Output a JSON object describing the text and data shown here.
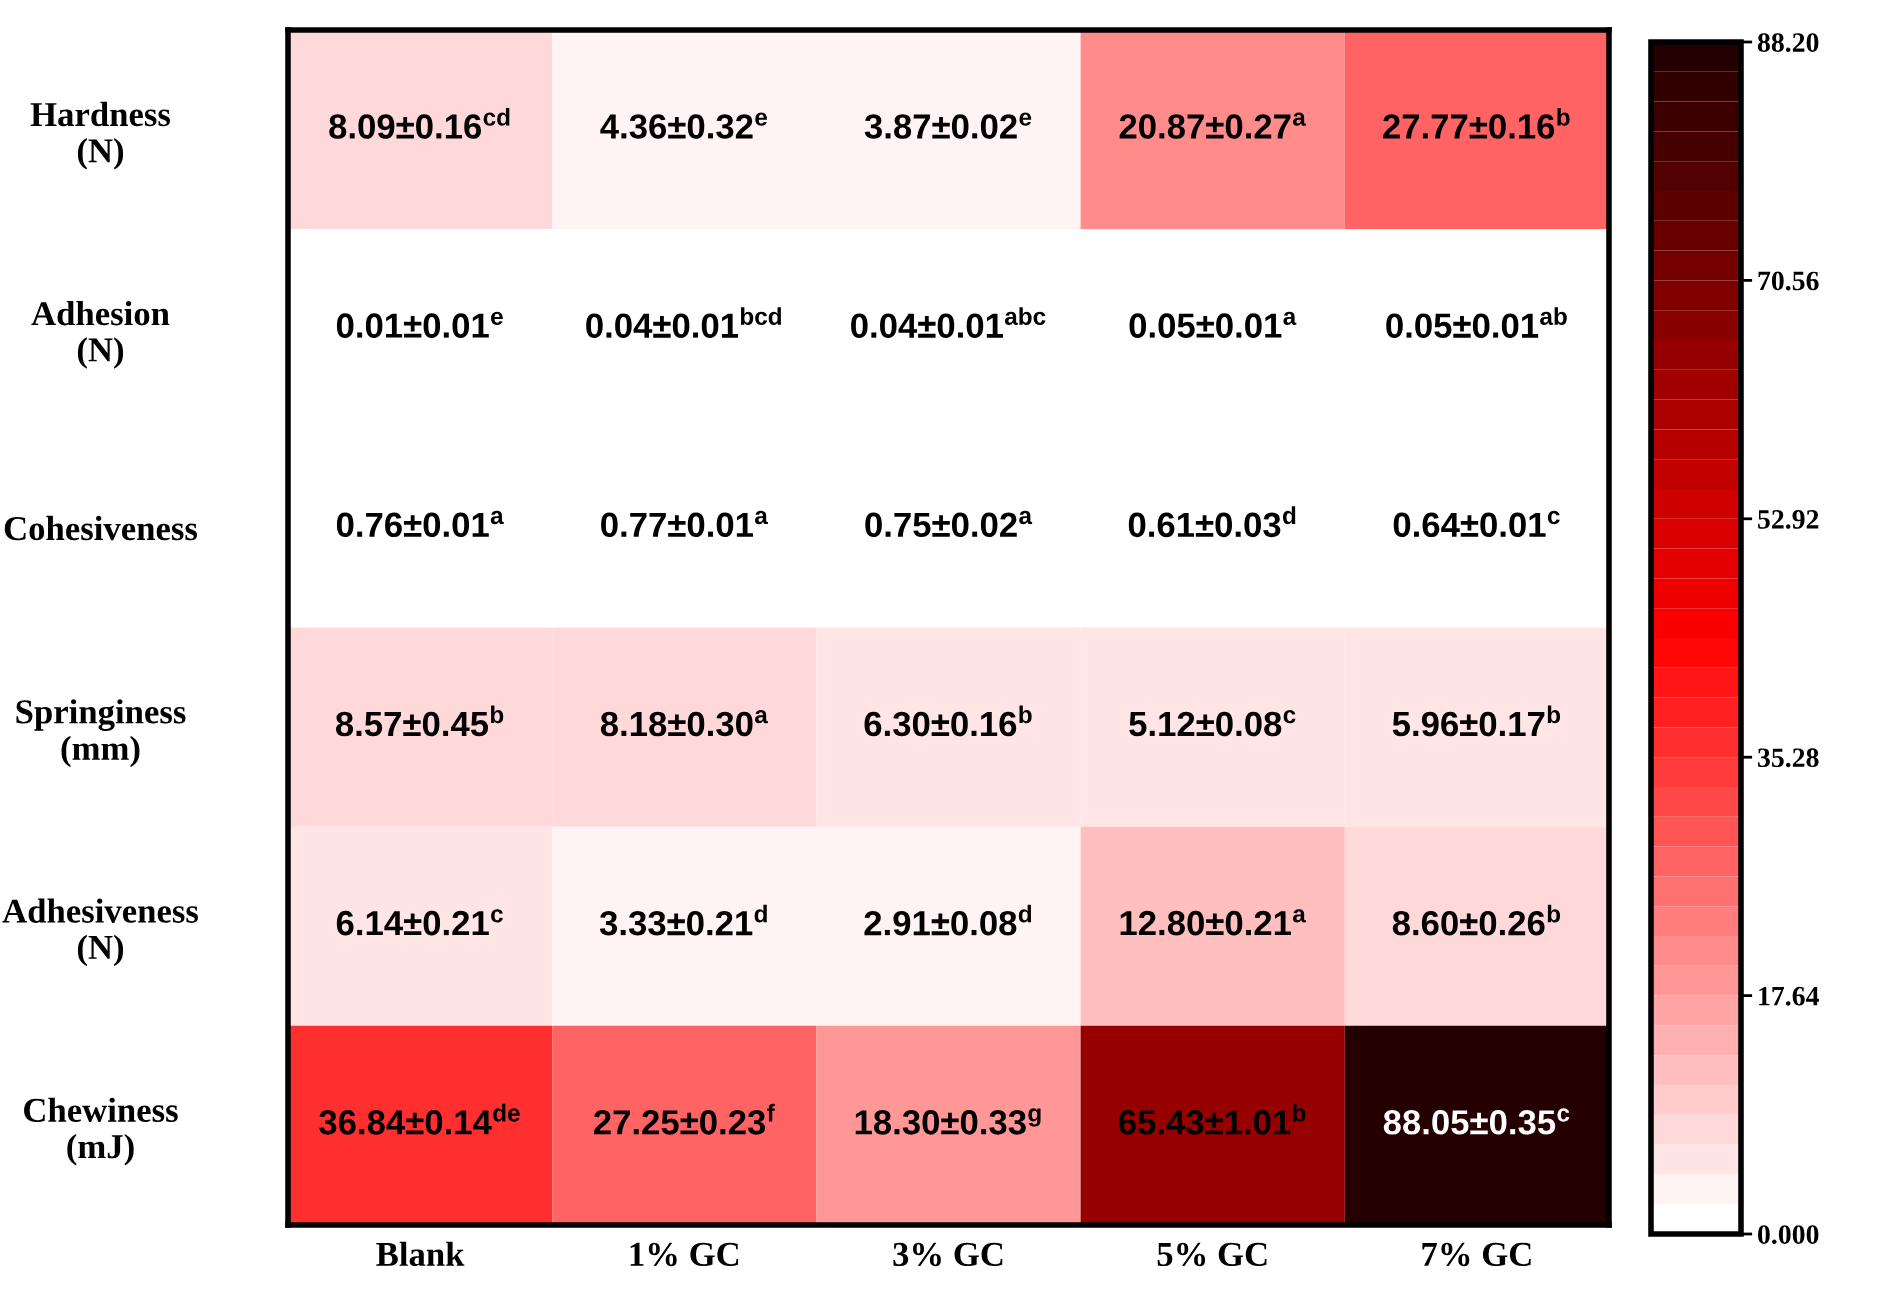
{
  "chart_data": {
    "type": "heatmap",
    "categories": [
      "Blank",
      "1% GC",
      "3% GC",
      "5% GC",
      "7% GC"
    ],
    "y_categories": [
      "Hardness\n(N)",
      "Adhesion\n(N)",
      "Cohesiveness",
      "Springiness\n(mm)",
      "Adhesiveness\n(N)",
      "Chewiness\n(mJ)"
    ],
    "cells": [
      [
        8.09,
        4.36,
        3.87,
        20.87,
        27.77
      ],
      [
        0.01,
        0.04,
        0.04,
        0.05,
        0.05
      ],
      [
        0.76,
        0.77,
        0.75,
        0.61,
        0.64
      ],
      [
        8.57,
        8.18,
        6.3,
        5.12,
        5.96
      ],
      [
        6.14,
        3.33,
        2.91,
        12.8,
        8.6
      ],
      [
        36.84,
        27.25,
        18.3,
        65.43,
        88.05
      ]
    ],
    "cell_labels": [
      [
        "8.09±0.16$^{cd}$",
        "4.36±0.32$^{e}$",
        "3.87±0.02$^{e}$",
        "20.87±0.27$^{a}$",
        "27.77±0.16$^{b}$"
      ],
      [
        "0.01±0.01$^{e}$",
        "0.04±0.01$^{bcd}$",
        "0.04±0.01$^{abc}$",
        "0.05±0.01$^{a}$",
        "0.05±0.01$^{ab}$"
      ],
      [
        "0.76±0.01$^{a}$",
        "0.77±0.01$^{a}$",
        "0.75±0.02$^{a}$",
        "0.61±0.03$^{d}$",
        "0.64±0.01$^{c}$"
      ],
      [
        "8.57±0.45$^{b}$",
        "8.18±0.30$^{a}$",
        "6.30±0.16$^{b}$",
        "5.12±0.08$^{c}$",
        "5.96±0.17$^{b}$"
      ],
      [
        "6.14±0.21$^{c}$",
        "3.33±0.21$^{d}$",
        "2.91±0.08$^{d}$",
        "12.80±0.21$^{a}$",
        "8.60±0.26$^{b}$"
      ],
      [
        "36.84±0.14$^{de}$",
        "27.25±0.23$^{f}$",
        "18.30±0.33$^{g}$",
        "65.43±1.01$^{b}$",
        "88.05±0.35$^{c}$"
      ]
    ],
    "clim": [
      0,
      88.2
    ],
    "cticks": [
      {
        "value": 0,
        "label": "0.000"
      },
      17.64,
      35.28,
      52.92,
      70.56,
      {
        "value": 88.2,
        "label": "88.20"
      }
    ]
  }
}
